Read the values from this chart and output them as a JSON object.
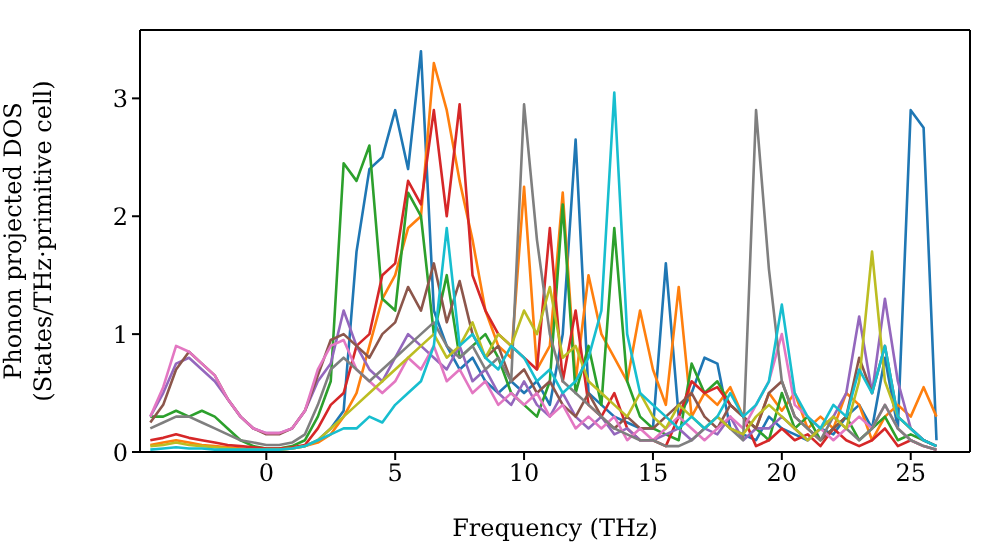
{
  "chart_data": {
    "type": "line",
    "xlabel": "Frequency (THz)",
    "ylabel": "Phonon projected DOS\n(States/THz·primitive cell)",
    "xlim": [
      -4.9,
      27.3
    ],
    "ylim": [
      0,
      3.58
    ],
    "xticks": [
      0,
      5,
      10,
      15,
      20,
      25
    ],
    "yticks": [
      0,
      1,
      2,
      3
    ],
    "x": [
      -4.5,
      -4,
      -3.5,
      -3,
      -2.5,
      -2,
      -1.5,
      -1,
      -0.5,
      0,
      0.5,
      1,
      1.5,
      2,
      2.5,
      3,
      3.5,
      4,
      4.5,
      5,
      5.5,
      6,
      6.5,
      7,
      7.5,
      8,
      8.5,
      9,
      9.5,
      10,
      10.5,
      11,
      11.5,
      12,
      12.5,
      13,
      13.5,
      14,
      14.5,
      15,
      15.5,
      16,
      16.5,
      17,
      17.5,
      18,
      18.5,
      19,
      19.5,
      20,
      20.5,
      21,
      21.5,
      22,
      22.5,
      23,
      23.5,
      24,
      24.5,
      25,
      25.5,
      26
    ],
    "series": [
      {
        "color": "#1f77b4",
        "values": [
          null,
          null,
          null,
          null,
          null,
          null,
          null,
          null,
          null,
          null,
          null,
          null,
          0.05,
          0.1,
          0.2,
          0.35,
          1.7,
          2.4,
          2.5,
          2.9,
          2.4,
          3.4,
          1.2,
          0.9,
          0.7,
          0.8,
          0.6,
          0.5,
          0.6,
          0.5,
          0.6,
          0.4,
          1.0,
          2.65,
          0.5,
          0.4,
          0.3,
          0.25,
          0.2,
          0.2,
          1.6,
          0.3,
          0.5,
          0.8,
          0.75,
          0.2,
          0.15,
          0.1,
          0.3,
          0.2,
          0.15,
          0.1,
          0.2,
          0.15,
          0.3,
          0.4,
          0.2,
          0.8,
          0.2,
          2.9,
          2.75,
          0.1
        ]
      },
      {
        "color": "#ff7f0e",
        "values": [
          0.06,
          0.08,
          0.1,
          0.08,
          0.06,
          0.05,
          0.04,
          0.03,
          0.02,
          0.02,
          0.02,
          0.03,
          0.05,
          0.08,
          0.15,
          0.3,
          0.5,
          0.9,
          1.3,
          1.5,
          1.9,
          2.0,
          3.3,
          2.9,
          2.3,
          1.8,
          1.2,
          0.9,
          0.8,
          2.25,
          0.7,
          0.9,
          2.2,
          0.6,
          1.5,
          1.0,
          0.8,
          0.6,
          1.2,
          0.7,
          0.4,
          1.4,
          0.3,
          0.5,
          0.4,
          0.55,
          0.3,
          0.2,
          0.5,
          0.35,
          0.5,
          0.2,
          0.3,
          0.2,
          0.5,
          0.4,
          0.1,
          0.3,
          0.4,
          0.3,
          0.55,
          0.3
        ]
      },
      {
        "color": "#2ca02c",
        "values": [
          0.3,
          0.3,
          0.35,
          0.3,
          0.35,
          0.3,
          0.2,
          0.1,
          0.05,
          0.03,
          0.03,
          0.05,
          0.1,
          0.3,
          0.6,
          2.45,
          2.3,
          2.6,
          1.3,
          1.2,
          2.2,
          2.0,
          1.0,
          1.5,
          0.8,
          0.9,
          1.0,
          0.8,
          0.5,
          0.4,
          0.3,
          0.6,
          2.1,
          0.5,
          0.9,
          0.4,
          1.9,
          0.6,
          0.3,
          0.2,
          0.15,
          0.1,
          0.75,
          0.5,
          0.6,
          0.4,
          0.3,
          0.2,
          0.1,
          0.5,
          0.2,
          0.3,
          0.1,
          0.2,
          0.3,
          0.1,
          0.2,
          0.3,
          0.1,
          0.15,
          0.1,
          0.05
        ]
      },
      {
        "color": "#d62728",
        "values": [
          0.1,
          0.12,
          0.15,
          0.12,
          0.1,
          0.08,
          0.06,
          0.05,
          0.04,
          0.03,
          0.03,
          0.04,
          0.06,
          0.2,
          0.4,
          0.5,
          0.9,
          1.0,
          1.5,
          1.6,
          2.3,
          2.1,
          2.9,
          2.0,
          2.95,
          1.5,
          1.2,
          1.0,
          0.9,
          0.8,
          0.7,
          1.9,
          0.6,
          1.2,
          0.4,
          0.3,
          0.5,
          0.2,
          0.1,
          0.1,
          0.05,
          0.3,
          0.6,
          0.5,
          0.55,
          0.4,
          0.3,
          0.05,
          0.1,
          0.2,
          0.1,
          0.15,
          0.05,
          0.2,
          0.1,
          0.05,
          0.1,
          0.2,
          0.05,
          0.1,
          0.05,
          0.02
        ]
      },
      {
        "color": "#9467bd",
        "values": [
          0.3,
          0.5,
          0.75,
          0.8,
          0.7,
          0.6,
          0.45,
          0.3,
          0.2,
          0.16,
          0.16,
          0.2,
          0.35,
          0.6,
          0.75,
          1.2,
          0.9,
          0.7,
          0.6,
          0.8,
          1.0,
          0.9,
          0.8,
          0.7,
          0.9,
          0.6,
          0.7,
          0.5,
          0.4,
          0.6,
          0.4,
          0.3,
          0.5,
          0.3,
          0.2,
          0.3,
          0.15,
          0.2,
          0.1,
          0.1,
          0.15,
          0.2,
          0.1,
          0.2,
          0.15,
          0.3,
          0.1,
          0.2,
          0.2,
          0.3,
          0.2,
          0.1,
          0.2,
          0.3,
          0.5,
          1.15,
          0.5,
          1.3,
          0.6,
          0.2,
          0.1,
          0.05
        ]
      },
      {
        "color": "#8c564b",
        "values": [
          0.25,
          0.4,
          0.7,
          0.85,
          0.75,
          0.65,
          0.45,
          0.3,
          0.2,
          0.15,
          0.15,
          0.2,
          0.35,
          0.65,
          0.95,
          1.0,
          0.9,
          0.8,
          1.0,
          1.1,
          1.4,
          1.2,
          1.6,
          1.1,
          1.45,
          1.0,
          0.8,
          0.9,
          0.6,
          0.7,
          0.5,
          0.6,
          0.4,
          0.3,
          0.5,
          0.3,
          0.2,
          0.3,
          0.2,
          0.2,
          0.3,
          0.4,
          0.5,
          0.3,
          0.2,
          0.4,
          0.3,
          0.2,
          0.5,
          0.6,
          0.3,
          0.2,
          0.1,
          0.2,
          0.3,
          0.8,
          0.5,
          0.9,
          0.3,
          0.2,
          0.1,
          0.05
        ]
      },
      {
        "color": "#e377c2",
        "values": [
          0.3,
          0.55,
          0.9,
          0.85,
          0.75,
          0.65,
          0.45,
          0.3,
          0.2,
          0.16,
          0.16,
          0.2,
          0.35,
          0.7,
          0.9,
          0.95,
          0.7,
          0.6,
          0.5,
          0.6,
          0.8,
          0.7,
          0.9,
          0.6,
          0.7,
          0.5,
          0.6,
          0.4,
          0.5,
          0.4,
          0.5,
          0.3,
          0.4,
          0.2,
          0.3,
          0.2,
          0.3,
          0.1,
          0.2,
          0.1,
          0.2,
          0.3,
          0.2,
          0.1,
          0.2,
          0.3,
          0.2,
          0.4,
          0.6,
          1.0,
          0.4,
          0.3,
          0.2,
          0.1,
          0.2,
          0.3,
          0.2,
          0.4,
          0.2,
          0.1,
          0.05,
          0.02
        ]
      },
      {
        "color": "#7f7f7f",
        "values": [
          0.2,
          0.25,
          0.3,
          0.3,
          0.25,
          0.2,
          0.15,
          0.1,
          0.08,
          0.06,
          0.06,
          0.08,
          0.15,
          0.4,
          0.7,
          0.8,
          0.7,
          0.6,
          0.7,
          0.8,
          0.9,
          1.0,
          1.1,
          0.9,
          0.8,
          0.9,
          0.7,
          0.8,
          0.6,
          2.95,
          1.8,
          1.0,
          0.6,
          0.5,
          0.4,
          0.3,
          0.2,
          0.15,
          0.1,
          0.1,
          0.05,
          0.05,
          0.1,
          0.2,
          0.3,
          0.2,
          0.1,
          2.9,
          1.55,
          0.6,
          0.3,
          0.2,
          0.1,
          0.3,
          0.2,
          0.1,
          0.2,
          0.4,
          0.2,
          0.1,
          0.05,
          0.02
        ]
      },
      {
        "color": "#bcbd22",
        "values": [
          0.05,
          0.06,
          0.08,
          0.06,
          0.05,
          0.04,
          0.03,
          0.02,
          0.02,
          0.02,
          0.02,
          0.03,
          0.05,
          0.1,
          0.2,
          0.3,
          0.4,
          0.5,
          0.6,
          0.7,
          0.8,
          0.9,
          1.0,
          0.8,
          0.9,
          1.1,
          0.8,
          1.0,
          0.9,
          1.2,
          1.0,
          1.4,
          0.8,
          0.9,
          0.6,
          0.5,
          0.4,
          0.3,
          0.5,
          0.3,
          0.2,
          0.4,
          0.3,
          0.2,
          0.3,
          0.2,
          0.15,
          0.3,
          0.4,
          0.3,
          0.2,
          0.1,
          0.2,
          0.3,
          0.2,
          0.6,
          1.7,
          0.6,
          0.3,
          0.2,
          null,
          null
        ]
      },
      {
        "color": "#17becf",
        "values": [
          0.02,
          0.03,
          0.04,
          0.03,
          0.03,
          0.02,
          0.02,
          0.02,
          0.02,
          0.02,
          0.02,
          0.03,
          0.05,
          0.1,
          0.15,
          0.2,
          0.2,
          0.3,
          0.25,
          0.4,
          0.5,
          0.6,
          0.9,
          1.9,
          0.9,
          1.0,
          0.8,
          0.7,
          0.9,
          0.8,
          0.6,
          0.7,
          0.5,
          0.6,
          0.8,
          1.2,
          3.05,
          1.0,
          0.5,
          0.4,
          0.3,
          0.2,
          0.3,
          0.2,
          0.3,
          0.5,
          0.3,
          0.4,
          0.6,
          1.25,
          0.5,
          0.3,
          0.2,
          0.4,
          0.3,
          0.7,
          0.5,
          0.9,
          0.3,
          0.2,
          0.1,
          0.05
        ]
      }
    ]
  }
}
